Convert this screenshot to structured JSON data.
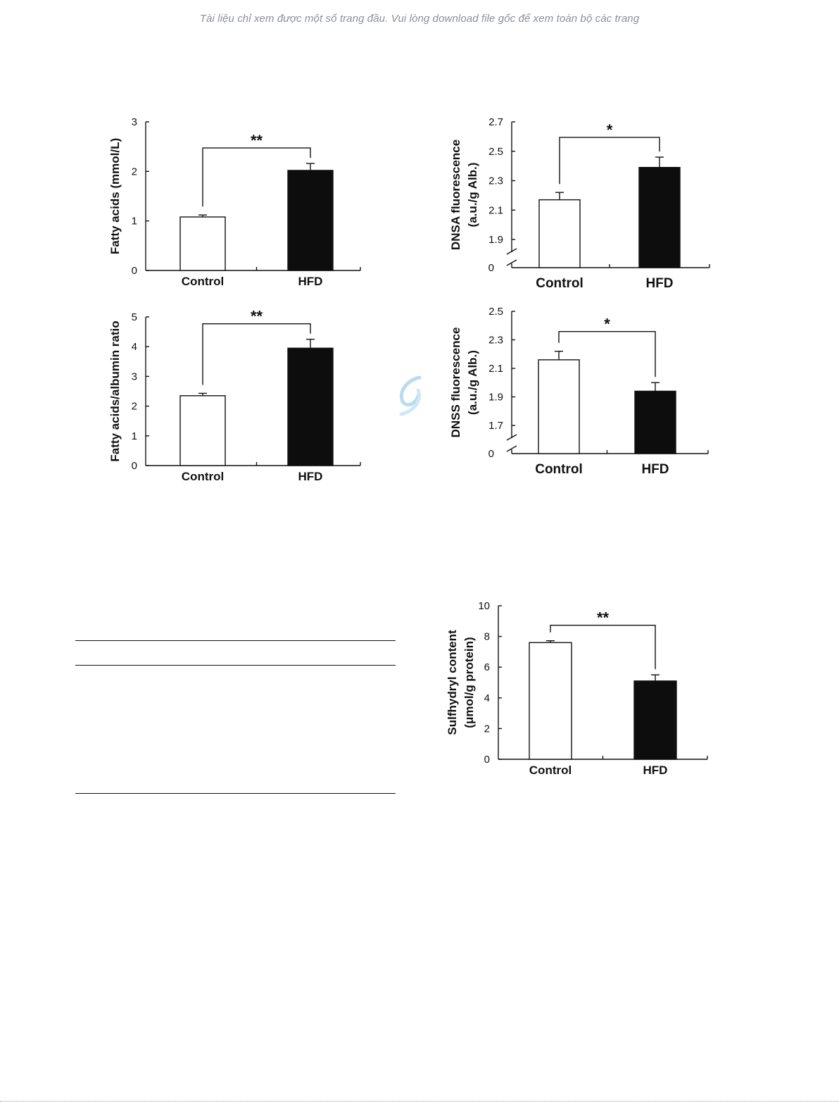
{
  "notice": "Tài liệu chỉ xem được một số trang đầu. Vui lòng download file gốc để xem toàn bộ các trang",
  "colors": {
    "control": "#ffffff",
    "hfd": "#0d0d0d",
    "axis": "#111111",
    "watermark": "#b9dcef"
  },
  "chart_data": [
    {
      "type": "bar",
      "categories": [
        "Control",
        "HFD"
      ],
      "values": [
        1.08,
        2.02
      ],
      "errors": [
        0.04,
        0.14
      ],
      "ylabel": "Fatty acids (mmol/L)",
      "ylim": [
        0,
        3
      ],
      "yticks": [
        0,
        1,
        2,
        3
      ],
      "significance": "**"
    },
    {
      "type": "bar",
      "categories": [
        "Control",
        "HFD"
      ],
      "values": [
        2.17,
        2.39
      ],
      "errors": [
        0.05,
        0.07
      ],
      "ylabel": [
        "DNSA fluorescence",
        "(a.u./g Alb.)"
      ],
      "ylim": [
        1.9,
        2.7
      ],
      "yticks": [
        1.9,
        2.1,
        2.3,
        2.5,
        2.7
      ],
      "axis_break": true,
      "significance": "*"
    },
    {
      "type": "bar",
      "categories": [
        "Control",
        "HFD"
      ],
      "values": [
        2.35,
        3.95
      ],
      "errors": [
        0.08,
        0.3
      ],
      "ylabel": "Fatty acids/albumin ratio",
      "ylim": [
        0,
        5
      ],
      "yticks": [
        0,
        1,
        2,
        3,
        4,
        5
      ],
      "significance": "**"
    },
    {
      "type": "bar",
      "categories": [
        "Control",
        "HFD"
      ],
      "values": [
        2.16,
        1.94
      ],
      "errors": [
        0.06,
        0.06
      ],
      "ylabel": [
        "DNSS fluorescence",
        "(a.u./g Alb.)"
      ],
      "ylim": [
        1.7,
        2.5
      ],
      "yticks": [
        1.7,
        1.9,
        2.1,
        2.3,
        2.5
      ],
      "axis_break": true,
      "significance": "*"
    },
    {
      "type": "bar",
      "categories": [
        "Control",
        "HFD"
      ],
      "values": [
        7.6,
        5.1
      ],
      "errors": [
        0.12,
        0.4
      ],
      "ylabel": [
        "Sulfhydryl content",
        "(μmol/g protein)"
      ],
      "ylim": [
        0,
        10
      ],
      "yticks": [
        0,
        2,
        4,
        6,
        8,
        10
      ],
      "significance": "**"
    }
  ]
}
